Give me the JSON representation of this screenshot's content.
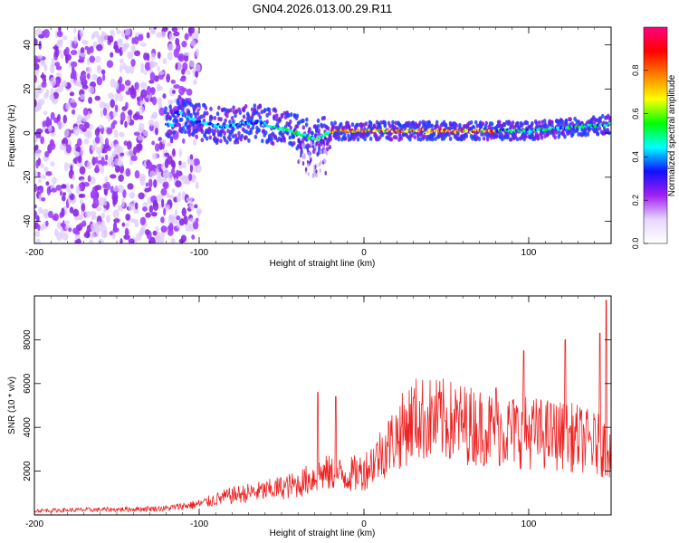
{
  "figure": {
    "title": "GN04.2026.013.00.29.R11"
  },
  "chart_data": [
    {
      "type": "heatmap",
      "title": "GN04.2026.013.00.29.R11",
      "xlabel": "Height of straight line (km)",
      "ylabel": "Frequency (Hz)",
      "xlim": [
        -200,
        150
      ],
      "ylim": [
        -50,
        48
      ],
      "x_ticks": [
        -200,
        -100,
        0,
        100
      ],
      "y_ticks": [
        -40,
        -20,
        0,
        20,
        40
      ],
      "colorbar": {
        "label": "Normalized spectral amplitude",
        "range": [
          0,
          1
        ],
        "ticks": [
          "0.0",
          "0.2",
          "0.4",
          "0.6",
          "0.8"
        ],
        "colors": [
          "#ffffff",
          "#e8d6ff",
          "#a020f0",
          "#1010ff",
          "#00ffff",
          "#00ff00",
          "#ffff00",
          "#ff8000",
          "#ff0000",
          "#ff0080"
        ]
      },
      "ridge": [
        {
          "x": -115,
          "y": 10
        },
        {
          "x": -100,
          "y": 5
        },
        {
          "x": -85,
          "y": 3
        },
        {
          "x": -65,
          "y": 5
        },
        {
          "x": -50,
          "y": 2
        },
        {
          "x": -40,
          "y": 0
        },
        {
          "x": -30,
          "y": -3
        },
        {
          "x": -20,
          "y": 1
        },
        {
          "x": 0,
          "y": 1
        },
        {
          "x": 50,
          "y": 1
        },
        {
          "x": 100,
          "y": 1
        },
        {
          "x": 150,
          "y": 4
        }
      ]
    },
    {
      "type": "line",
      "title": "",
      "xlabel": "Height of straight line (km)",
      "ylabel": "SNR (10 * v/v)",
      "xlim": [
        -200,
        150
      ],
      "ylim": [
        0,
        10000
      ],
      "x_ticks": [
        -200,
        -100,
        0,
        100
      ],
      "y_ticks": [
        2000,
        4000,
        6000,
        8000
      ],
      "series": [
        {
          "name": "SNR",
          "color": "#ee2222",
          "envelope": [
            {
              "x": -200,
              "y": 200
            },
            {
              "x": -150,
              "y": 250
            },
            {
              "x": -120,
              "y": 300
            },
            {
              "x": -100,
              "y": 500
            },
            {
              "x": -80,
              "y": 900
            },
            {
              "x": -60,
              "y": 1100
            },
            {
              "x": -40,
              "y": 1400
            },
            {
              "x": -25,
              "y": 1900
            },
            {
              "x": -10,
              "y": 1800
            },
            {
              "x": 0,
              "y": 2000
            },
            {
              "x": 15,
              "y": 3200
            },
            {
              "x": 30,
              "y": 4400
            },
            {
              "x": 50,
              "y": 4300
            },
            {
              "x": 80,
              "y": 3900
            },
            {
              "x": 110,
              "y": 3700
            },
            {
              "x": 130,
              "y": 3500
            },
            {
              "x": 150,
              "y": 3000
            }
          ],
          "peaks": [
            {
              "x": -28,
              "y": 5600
            },
            {
              "x": -17,
              "y": 5400
            },
            {
              "x": 47,
              "y": 5600
            },
            {
              "x": 80,
              "y": 5800
            },
            {
              "x": 97,
              "y": 7500
            },
            {
              "x": 122,
              "y": 8000
            },
            {
              "x": 143,
              "y": 8300
            },
            {
              "x": 147,
              "y": 9800
            }
          ]
        }
      ]
    }
  ]
}
